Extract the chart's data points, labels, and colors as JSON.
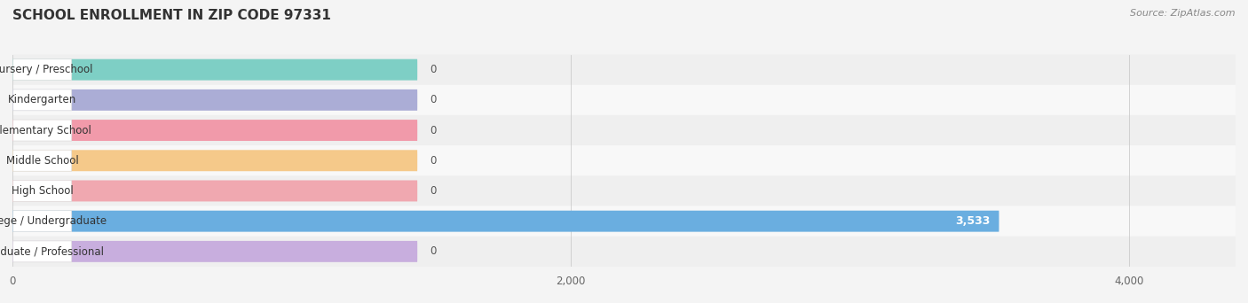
{
  "title": "SCHOOL ENROLLMENT IN ZIP CODE 97331",
  "source": "Source: ZipAtlas.com",
  "categories": [
    "Nursery / Preschool",
    "Kindergarten",
    "Elementary School",
    "Middle School",
    "High School",
    "College / Undergraduate",
    "Graduate / Professional"
  ],
  "values": [
    0,
    0,
    0,
    0,
    0,
    3533,
    0
  ],
  "bar_colors": [
    "#7ecfc5",
    "#abadd6",
    "#f19aaa",
    "#f5c98a",
    "#f0a8b0",
    "#6aaee0",
    "#c8aede"
  ],
  "label_bg_colors": [
    "#e8f7f5",
    "#eeeef8",
    "#fce8ea",
    "#fdf2e0",
    "#fce8ea",
    "#ddeeff",
    "#f2eaf8"
  ],
  "row_bg_colors": [
    "#efefef",
    "#f8f8f8"
  ],
  "xlim_max": 4380,
  "xticks": [
    0,
    2000,
    4000
  ],
  "xtick_labels": [
    "0",
    "2,000",
    "4,000"
  ],
  "bar_height": 0.7,
  "zero_bar_width": 1450,
  "value_label_3533": "3,533",
  "bg_color": "#f4f4f4",
  "title_color": "#333333",
  "source_color": "#888888"
}
